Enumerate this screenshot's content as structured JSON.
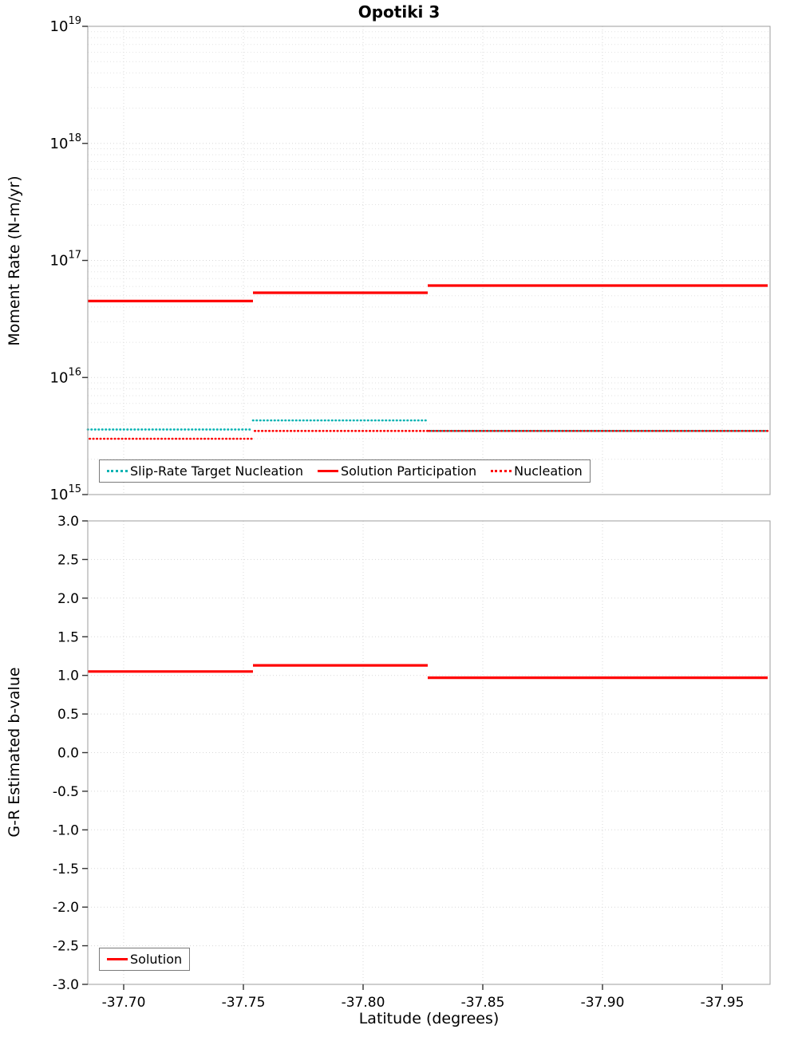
{
  "title": "Opotiki 3",
  "x_axis": {
    "label": "Latitude (degrees)",
    "range": [
      -37.685,
      -37.97
    ],
    "ticks": [
      -37.7,
      -37.75,
      -37.8,
      -37.85,
      -37.9,
      -37.95
    ],
    "tick_labels": [
      "-37.70",
      "-37.75",
      "-37.80",
      "-37.85",
      "-37.90",
      "-37.95"
    ]
  },
  "style": {
    "grid_color": "#d8d8d8",
    "grid_minor_color": "#e2e2e2",
    "spine_color": "#9e9e9e",
    "tick_color": "#333333",
    "solution_red": "#ff0000",
    "target_teal": "#00b2b2"
  },
  "legend_top": {
    "items": [
      {
        "label": "Slip-Rate Target Nucleation",
        "color": "#00b2b2",
        "line_style": "dotted"
      },
      {
        "label": "Solution Participation",
        "color": "#ff0000",
        "line_style": "solid"
      },
      {
        "label": "Nucleation",
        "color": "#ff0000",
        "line_style": "dotted"
      }
    ]
  },
  "legend_bottom": {
    "items": [
      {
        "label": "Solution",
        "color": "#ff0000",
        "line_style": "solid"
      }
    ]
  },
  "chart_data": [
    {
      "type": "line",
      "title": "Opotiki 3",
      "ylabel": "Moment Rate (N-m/yr)",
      "yscale": "log",
      "ylim": [
        1000000000000000.0,
        1e+19
      ],
      "ytick_exponents": [
        19,
        18,
        17,
        16,
        15
      ],
      "xlim": [
        -37.685,
        -37.97
      ],
      "x_descending": true,
      "grid": true,
      "legend_position": "bottom-inside",
      "series": [
        {
          "name": "Slip-Rate Target Nucleation",
          "color": "#00b2b2",
          "line_style": "dotted",
          "segments": [
            {
              "x0": -37.685,
              "x1": -37.754,
              "y": 3600000000000000.0
            },
            {
              "x0": -37.754,
              "x1": -37.827,
              "y": 4300000000000000.0
            },
            {
              "x0": -37.827,
              "x1": -37.969,
              "y": 3500000000000000.0
            }
          ]
        },
        {
          "name": "Solution Participation",
          "color": "#ff0000",
          "line_style": "solid",
          "segments": [
            {
              "x0": -37.685,
              "x1": -37.754,
              "y": 4.5e+16
            },
            {
              "x0": -37.754,
              "x1": -37.827,
              "y": 5.3e+16
            },
            {
              "x0": -37.827,
              "x1": -37.969,
              "y": 6.1e+16
            }
          ]
        },
        {
          "name": "Nucleation",
          "color": "#ff0000",
          "line_style": "dotted",
          "dash_offset": 2.2,
          "segments": [
            {
              "x0": -37.685,
              "x1": -37.754,
              "y": 3000000000000000.0
            },
            {
              "x0": -37.754,
              "x1": -37.827,
              "y": 3500000000000000.0
            },
            {
              "x0": -37.827,
              "x1": -37.969,
              "y": 3500000000000000.0
            }
          ]
        }
      ]
    },
    {
      "type": "line",
      "ylabel": "G-R Estimated b-value",
      "ylim": [
        -3,
        3
      ],
      "yticks": [
        3,
        2.5,
        2,
        1.5,
        1,
        0.5,
        0,
        -0.5,
        -1,
        -1.5,
        -2,
        -2.5,
        -3
      ],
      "ytick_labels": [
        "3.0",
        "2.5",
        "2.0",
        "1.5",
        "1.0",
        "0.5",
        "0.0",
        "-0.5",
        "-1.0",
        "-1.5",
        "-2.0",
        "-2.5",
        "-3.0"
      ],
      "xlabel": "Latitude (degrees)",
      "xlim": [
        -37.685,
        -37.97
      ],
      "x_descending": true,
      "grid": true,
      "legend_position": "bottom-left-inside",
      "series": [
        {
          "name": "Solution",
          "color": "#ff0000",
          "line_style": "solid",
          "segments": [
            {
              "x0": -37.685,
              "x1": -37.754,
              "y": 1.05
            },
            {
              "x0": -37.754,
              "x1": -37.827,
              "y": 1.13
            },
            {
              "x0": -37.827,
              "x1": -37.969,
              "y": 0.97
            }
          ]
        }
      ]
    }
  ]
}
